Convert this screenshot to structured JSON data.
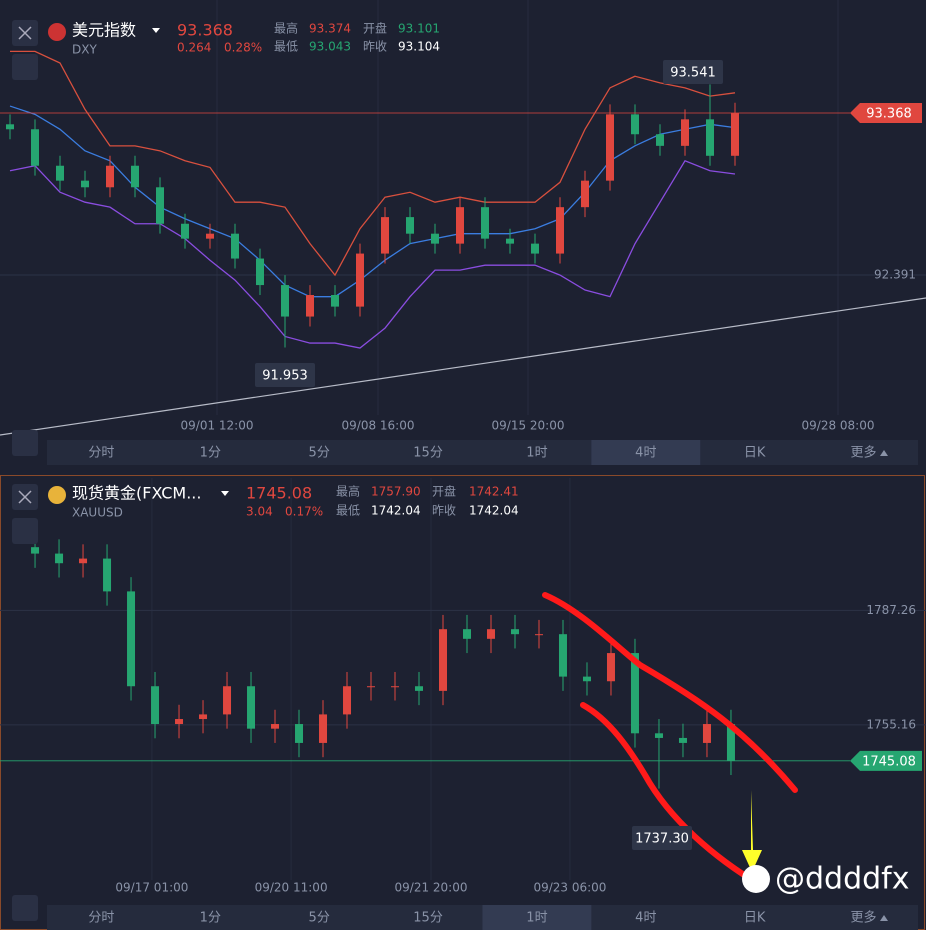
{
  "panels": [
    {
      "symbol": "美元指数",
      "code": "DXY",
      "price": "93.368",
      "change": "0.264",
      "change_pct": "0.28%",
      "stats": [
        {
          "label": "最高",
          "value": "93.374"
        },
        {
          "label": "开盘",
          "value": "93.101"
        },
        {
          "label": "最低",
          "value": "93.043"
        },
        {
          "label": "昨收",
          "value": "93.104"
        }
      ],
      "annotations": [
        "93.541",
        "91.953"
      ],
      "active_tab": 5
    },
    {
      "symbol": "现货黄金(FXCM...",
      "code": "XAUUSD",
      "price": "1745.08",
      "change": "3.04",
      "change_pct": "0.17%",
      "stats": [
        {
          "label": "最高",
          "value": "1757.90"
        },
        {
          "label": "开盘",
          "value": "1742.41"
        },
        {
          "label": "最低",
          "value": "1742.04"
        },
        {
          "label": "昨收",
          "value": "1742.04"
        }
      ],
      "annotations": [
        "1737.30"
      ],
      "active_tab": 4,
      "watermark": "@ddddfx"
    }
  ],
  "toolbar": {
    "items": [
      "分时",
      "1分",
      "5分",
      "15分",
      "1时",
      "4时",
      "日K",
      "更多"
    ]
  },
  "chart_data": [
    {
      "type": "candlestick",
      "up_color": "#e0473f",
      "down_color": "#26a671",
      "last_price": 93.368,
      "last_color": "#e0473f",
      "x": [
        0,
        1,
        2,
        3,
        4,
        5,
        6,
        7,
        8,
        9,
        10,
        11,
        12,
        13,
        14,
        15,
        16,
        17,
        18,
        19,
        20,
        21,
        22,
        23,
        24,
        25,
        26,
        27,
        28,
        29
      ],
      "open": [
        93.3,
        93.27,
        93.05,
        92.96,
        92.92,
        93.05,
        92.92,
        92.7,
        92.61,
        92.64,
        92.49,
        92.33,
        92.14,
        92.27,
        92.2,
        92.52,
        92.74,
        92.64,
        92.58,
        92.8,
        92.61,
        92.58,
        92.52,
        92.8,
        92.96,
        93.36,
        93.24,
        93.17,
        93.33,
        93.11
      ],
      "high": [
        93.36,
        93.33,
        93.11,
        93.02,
        93.11,
        93.11,
        92.98,
        92.76,
        92.7,
        92.7,
        92.55,
        92.39,
        92.33,
        92.33,
        92.58,
        92.8,
        92.8,
        92.7,
        92.86,
        92.86,
        92.67,
        92.64,
        92.86,
        93.02,
        93.42,
        93.42,
        93.3,
        93.39,
        93.541,
        93.43
      ],
      "low": [
        93.21,
        92.99,
        92.9,
        92.86,
        92.86,
        92.86,
        92.64,
        92.55,
        92.55,
        92.43,
        92.27,
        91.953,
        92.08,
        92.14,
        92.14,
        92.46,
        92.58,
        92.52,
        92.52,
        92.55,
        92.52,
        92.46,
        92.46,
        92.74,
        92.9,
        93.18,
        93.11,
        93.11,
        93.05,
        93.05
      ],
      "close": [
        93.27,
        93.05,
        92.96,
        92.92,
        93.05,
        92.92,
        92.7,
        92.61,
        92.64,
        92.49,
        92.33,
        92.14,
        92.27,
        92.2,
        92.52,
        92.74,
        92.64,
        92.58,
        92.8,
        92.61,
        92.58,
        92.52,
        92.8,
        92.96,
        93.36,
        93.24,
        93.17,
        93.33,
        93.11,
        93.368
      ],
      "series": [
        {
          "color": "#d8503e",
          "values": [
            93.74,
            93.74,
            93.67,
            93.39,
            93.17,
            93.17,
            93.14,
            93.08,
            93.04,
            92.83,
            92.83,
            92.8,
            92.58,
            92.39,
            92.67,
            92.86,
            92.89,
            92.83,
            92.86,
            92.83,
            92.83,
            92.83,
            92.95,
            93.27,
            93.52,
            93.59,
            93.55,
            93.52,
            93.47,
            93.49
          ]
        },
        {
          "color": "#3b7de0",
          "values": [
            93.41,
            93.36,
            93.27,
            93.14,
            93.08,
            92.92,
            92.8,
            92.73,
            92.67,
            92.61,
            92.48,
            92.33,
            92.26,
            92.26,
            92.36,
            92.48,
            92.58,
            92.61,
            92.64,
            92.64,
            92.64,
            92.67,
            92.73,
            92.89,
            93.08,
            93.17,
            93.24,
            93.27,
            93.3,
            93.28
          ]
        },
        {
          "color": "#8a4de0",
          "values": [
            93.02,
            93.05,
            92.89,
            92.83,
            92.8,
            92.7,
            92.7,
            92.61,
            92.48,
            92.36,
            92.2,
            92.02,
            91.98,
            91.98,
            91.95,
            92.07,
            92.26,
            92.42,
            92.42,
            92.45,
            92.45,
            92.45,
            92.39,
            92.3,
            92.26,
            92.58,
            92.83,
            93.08,
            93.02,
            93.0
          ]
        }
      ],
      "xlim": [
        -0.4,
        33.6
      ],
      "xticks": [
        {
          "value": 8.28,
          "label": "09/01 12:00"
        },
        {
          "value": 14.72,
          "label": "09/08 16:00"
        },
        {
          "value": 20.72,
          "label": "09/15 20:00"
        },
        {
          "value": 33.12,
          "label": "09/28 08:00"
        }
      ],
      "ylim": [
        91.546,
        94.05
      ],
      "yticks": [
        92.391
      ],
      "grid": true
    },
    {
      "type": "candlestick",
      "up_color": "#e0473f",
      "down_color": "#26a671",
      "last_price": 1745.08,
      "last_color": "#26a671",
      "x": [
        0,
        1,
        2,
        3,
        4,
        5,
        6,
        7,
        8,
        9,
        10,
        11,
        12,
        13,
        14,
        15,
        16,
        17,
        18,
        19,
        20,
        21,
        22,
        23,
        24,
        25,
        26,
        27,
        28,
        29
      ],
      "open": [
        1805.0,
        1803.2,
        1800.5,
        1801.8,
        1792.6,
        1766.0,
        1755.4,
        1756.8,
        1758.1,
        1766.0,
        1754.1,
        1755.4,
        1750.1,
        1758.1,
        1766.0,
        1766.0,
        1766.0,
        1764.7,
        1782.0,
        1779.3,
        1782.0,
        1780.6,
        1780.6,
        1768.7,
        1767.4,
        1775.3,
        1752.8,
        1751.5,
        1750.1,
        1755.4
      ],
      "high": [
        1809.0,
        1807.2,
        1805.8,
        1805.8,
        1796.6,
        1770.0,
        1760.8,
        1762.1,
        1770.0,
        1770.0,
        1759.4,
        1759.4,
        1762.1,
        1770.0,
        1770.0,
        1770.0,
        1770.0,
        1786.0,
        1786.0,
        1786.0,
        1786.0,
        1784.6,
        1784.6,
        1772.7,
        1779.3,
        1779.3,
        1756.8,
        1755.5,
        1759.4,
        1759.4
      ],
      "low": [
        1799.2,
        1796.5,
        1796.5,
        1788.6,
        1762.0,
        1751.4,
        1751.4,
        1752.8,
        1754.1,
        1750.1,
        1750.1,
        1746.1,
        1746.1,
        1754.1,
        1762.0,
        1762.0,
        1760.7,
        1760.7,
        1775.3,
        1775.3,
        1776.6,
        1776.6,
        1764.7,
        1763.4,
        1763.4,
        1748.8,
        1737.3,
        1746.1,
        1746.1,
        1741.1
      ],
      "close": [
        1803.2,
        1800.5,
        1801.8,
        1792.6,
        1766.0,
        1755.4,
        1756.8,
        1758.1,
        1766.0,
        1754.1,
        1755.4,
        1750.1,
        1758.1,
        1766.0,
        1766.0,
        1766.0,
        1764.7,
        1782.0,
        1779.3,
        1782.0,
        1780.6,
        1780.6,
        1768.7,
        1767.4,
        1775.3,
        1752.8,
        1751.5,
        1750.1,
        1755.4,
        1745.08
      ],
      "xlim": [
        -1.46,
        33.96
      ],
      "xticks": [
        {
          "value": 4.87,
          "label": "09/17 01:00"
        },
        {
          "value": 10.67,
          "label": "09/20 11:00"
        },
        {
          "value": 16.5,
          "label": "09/21 20:00"
        },
        {
          "value": 22.29,
          "label": "09/23 06:00"
        }
      ],
      "ylim": [
        1711.66,
        1824.4
      ],
      "yticks": [
        1787.26,
        1755.16
      ],
      "grid": true
    }
  ]
}
